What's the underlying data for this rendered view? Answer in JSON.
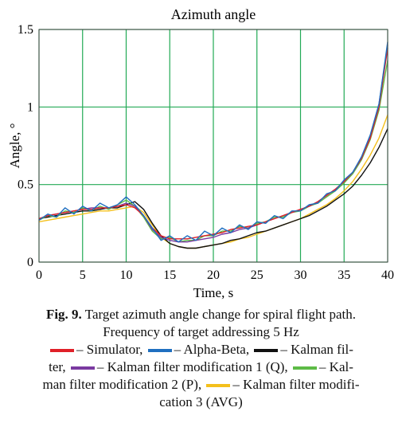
{
  "chart_data": {
    "type": "line",
    "title": "Azimuth angle",
    "xlabel": "Time, s",
    "ylabel": "Angle, °",
    "xlim": [
      0,
      40
    ],
    "ylim": [
      0,
      1.5
    ],
    "xticks": [
      "0",
      "5",
      "10",
      "15",
      "20",
      "25",
      "30",
      "35",
      "40"
    ],
    "yticks": [
      "0",
      "0.5",
      "1",
      "1.5"
    ],
    "grid": true,
    "grid_color": "#22aa55",
    "x": [
      0,
      1,
      2,
      3,
      4,
      5,
      6,
      7,
      8,
      9,
      10,
      11,
      12,
      13,
      14,
      15,
      16,
      17,
      18,
      19,
      20,
      21,
      22,
      23,
      24,
      25,
      26,
      27,
      28,
      29,
      30,
      31,
      32,
      33,
      34,
      35,
      36,
      37,
      38,
      39,
      40
    ],
    "series": [
      {
        "name": "Simulator",
        "color": "#e02028",
        "values": [
          0.28,
          0.3,
          0.31,
          0.32,
          0.33,
          0.34,
          0.34,
          0.35,
          0.35,
          0.36,
          0.37,
          0.35,
          0.3,
          0.22,
          0.17,
          0.15,
          0.15,
          0.15,
          0.16,
          0.17,
          0.18,
          0.19,
          0.21,
          0.22,
          0.23,
          0.24,
          0.26,
          0.28,
          0.3,
          0.32,
          0.34,
          0.36,
          0.39,
          0.43,
          0.47,
          0.52,
          0.58,
          0.67,
          0.8,
          1.0,
          1.38
        ]
      },
      {
        "name": "Alpha-Beta",
        "color": "#1f6fc0",
        "values": [
          0.27,
          0.31,
          0.29,
          0.35,
          0.31,
          0.36,
          0.33,
          0.38,
          0.35,
          0.37,
          0.42,
          0.37,
          0.3,
          0.22,
          0.14,
          0.17,
          0.13,
          0.17,
          0.14,
          0.2,
          0.17,
          0.22,
          0.19,
          0.24,
          0.21,
          0.26,
          0.25,
          0.3,
          0.28,
          0.33,
          0.33,
          0.37,
          0.38,
          0.44,
          0.46,
          0.53,
          0.58,
          0.68,
          0.82,
          1.02,
          1.42
        ]
      },
      {
        "name": "Kalman filter",
        "color": "#111111",
        "values": [
          0.28,
          0.29,
          0.3,
          0.31,
          0.32,
          0.33,
          0.33,
          0.34,
          0.35,
          0.35,
          0.37,
          0.39,
          0.34,
          0.25,
          0.17,
          0.12,
          0.1,
          0.09,
          0.09,
          0.1,
          0.11,
          0.12,
          0.14,
          0.15,
          0.17,
          0.19,
          0.2,
          0.22,
          0.24,
          0.26,
          0.28,
          0.3,
          0.33,
          0.36,
          0.4,
          0.44,
          0.49,
          0.56,
          0.64,
          0.74,
          0.86
        ]
      },
      {
        "name": "Kalman filter modification 1 (Q)",
        "color": "#7a3aa0",
        "values": [
          0.28,
          0.3,
          0.31,
          0.32,
          0.33,
          0.34,
          0.35,
          0.35,
          0.35,
          0.36,
          0.38,
          0.36,
          0.3,
          0.21,
          0.16,
          0.14,
          0.13,
          0.13,
          0.14,
          0.15,
          0.16,
          0.18,
          0.19,
          0.21,
          0.22,
          0.24,
          0.26,
          0.28,
          0.3,
          0.32,
          0.34,
          0.36,
          0.39,
          0.43,
          0.47,
          0.52,
          0.58,
          0.67,
          0.81,
          1.02,
          1.4
        ]
      },
      {
        "name": "Kalman filter modification 2 (P)",
        "color": "#5dbb46",
        "values": [
          0.27,
          0.3,
          0.29,
          0.33,
          0.32,
          0.35,
          0.33,
          0.36,
          0.34,
          0.37,
          0.4,
          0.36,
          0.29,
          0.2,
          0.15,
          0.16,
          0.13,
          0.14,
          0.14,
          0.17,
          0.17,
          0.2,
          0.2,
          0.23,
          0.22,
          0.25,
          0.26,
          0.29,
          0.29,
          0.32,
          0.33,
          0.36,
          0.38,
          0.42,
          0.46,
          0.51,
          0.57,
          0.66,
          0.79,
          0.98,
          1.3
        ]
      },
      {
        "name": "Kalman filter modification 3 (AVG)",
        "color": "#f4c01c",
        "values": [
          0.26,
          0.27,
          0.28,
          0.29,
          0.3,
          0.31,
          0.32,
          0.33,
          0.33,
          0.34,
          0.35,
          0.36,
          0.32,
          0.24,
          0.16,
          0.12,
          0.1,
          0.09,
          0.09,
          0.1,
          0.11,
          0.12,
          0.13,
          0.15,
          0.16,
          0.18,
          0.2,
          0.22,
          0.24,
          0.26,
          0.28,
          0.31,
          0.34,
          0.37,
          0.41,
          0.46,
          0.52,
          0.6,
          0.69,
          0.8,
          0.95
        ]
      }
    ]
  },
  "caption": {
    "fig_label": "Fig. 9.",
    "line1": " Target azimuth angle change for spiral flight path.",
    "line2": "Frequency of target addressing 5 Hz",
    "line3": {
      "sim": "– Simulator,",
      "ab": "– Alpha-Beta,",
      "kf": "– Kalman fil-"
    },
    "line4": {
      "pre": "ter,",
      "m1": "– Kalman filter modification  1 (Q),",
      "m2": "– Kal-"
    },
    "line5": {
      "pre": "man filter modification 2 (P),",
      "m3": "– Kalman filter modifi-"
    },
    "line6": "cation 3 (AVG)"
  }
}
